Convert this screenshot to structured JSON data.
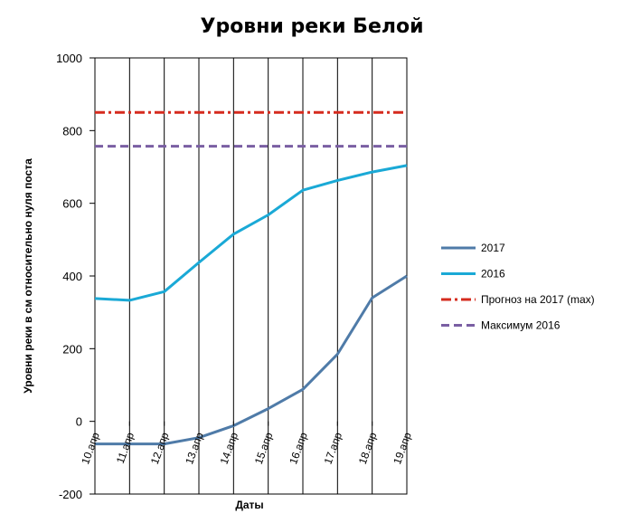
{
  "chart_data": {
    "type": "line",
    "title": "Уровни реки Белой",
    "xlabel": "Даты",
    "ylabel": "Уровни реки в см относительно нуля поста",
    "categories": [
      "10.апр",
      "11.апр",
      "12.апр",
      "13.апр",
      "14.апр",
      "15.апр",
      "16.апр",
      "17.апр",
      "18.апр",
      "19.апр"
    ],
    "ylim": [
      -200,
      1000
    ],
    "yticks": [
      -200,
      0,
      200,
      400,
      600,
      800,
      1000
    ],
    "grid": "vertical lines at categories",
    "legend": "right",
    "series": [
      {
        "name": "2017",
        "style": "solid",
        "color": "#4f7ba8",
        "values": [
          -62,
          -62,
          -62,
          -45,
          -12,
          35,
          88,
          185,
          340,
          400
        ]
      },
      {
        "name": "2016",
        "style": "solid",
        "color": "#1aa9d6",
        "values": [
          338,
          333,
          357,
          437,
          515,
          568,
          636,
          663,
          686,
          704
        ]
      },
      {
        "name": "Прогноз на 2017 (max)",
        "style": "dash-dot",
        "color": "#d52b1e",
        "values": [
          850,
          850,
          850,
          850,
          850,
          850,
          850,
          850,
          850,
          850
        ]
      },
      {
        "name": "Максимум  2016",
        "style": "dashed",
        "color": "#7a5fa3",
        "values": [
          757,
          757,
          757,
          757,
          757,
          757,
          757,
          757,
          757,
          757
        ]
      }
    ]
  }
}
